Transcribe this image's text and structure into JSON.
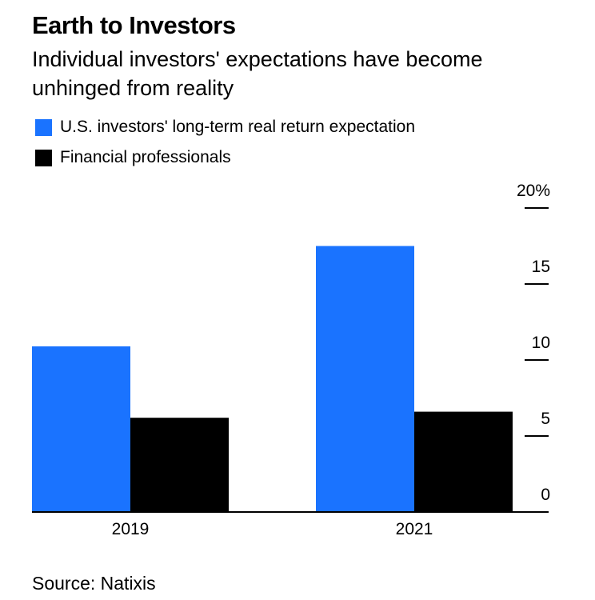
{
  "chart_data": {
    "type": "bar",
    "title": "Earth to Investors",
    "subtitle": "Individual investors' expectations have become unhinged from reality",
    "categories": [
      "2019",
      "2021"
    ],
    "series": [
      {
        "name": "U.S. investors' long-term real return expectation",
        "color": "#1a73ff",
        "values": [
          10.9,
          17.5
        ]
      },
      {
        "name": "Financial professionals",
        "color": "#000000",
        "values": [
          6.2,
          6.6
        ]
      }
    ],
    "ylim": [
      0,
      20
    ],
    "yticks": [
      0,
      5,
      10,
      15,
      20
    ],
    "ytick_labels": [
      "0",
      "5",
      "10",
      "15",
      "20%"
    ],
    "xlabel": "",
    "ylabel": "",
    "legend_position": "top-left",
    "source": "Source: Natixis"
  }
}
